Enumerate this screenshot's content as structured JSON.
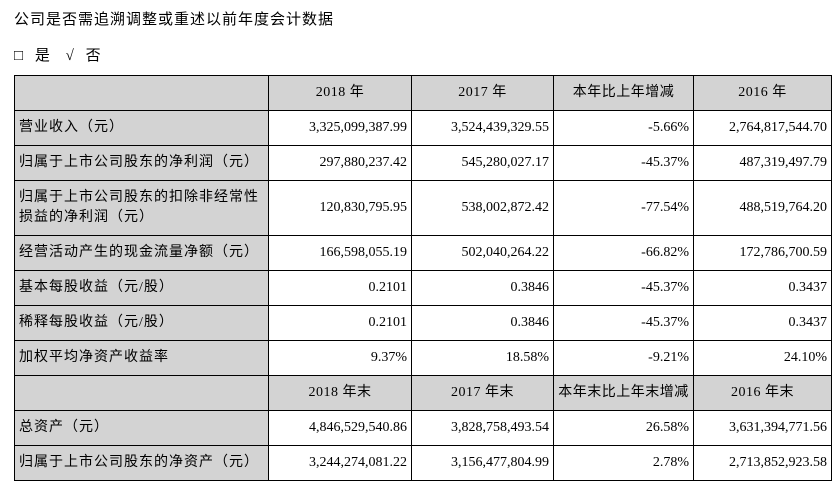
{
  "page": {
    "title": "公司是否需追溯调整或重述以前年度会计数据",
    "choice": {
      "box": "□",
      "yes": "是",
      "check": "√",
      "no": "否"
    }
  },
  "colors": {
    "cell_grey": "#d3d3d3",
    "border": "#000000"
  },
  "table": {
    "sections": [
      {
        "headers": [
          "",
          "2018 年",
          "2017 年",
          "本年比上年增减",
          "2016 年"
        ],
        "rows": [
          {
            "label": "营业收入（元）",
            "values": [
              "3,325,099,387.99",
              "3,524,439,329.55",
              "-5.66%",
              "2,764,817,544.70"
            ]
          },
          {
            "label": "归属于上市公司股东的净利润（元）",
            "values": [
              "297,880,237.42",
              "545,280,027.17",
              "-45.37%",
              "487,319,497.79"
            ]
          },
          {
            "label": "归属于上市公司股东的扣除非经常性损益的净利润（元）",
            "values": [
              "120,830,795.95",
              "538,002,872.42",
              "-77.54%",
              "488,519,764.20"
            ]
          },
          {
            "label": "经营活动产生的现金流量净额（元）",
            "values": [
              "166,598,055.19",
              "502,040,264.22",
              "-66.82%",
              "172,786,700.59"
            ]
          },
          {
            "label": "基本每股收益（元/股）",
            "values": [
              "0.2101",
              "0.3846",
              "-45.37%",
              "0.3437"
            ]
          },
          {
            "label": "稀释每股收益（元/股）",
            "values": [
              "0.2101",
              "0.3846",
              "-45.37%",
              "0.3437"
            ]
          },
          {
            "label": "加权平均净资产收益率",
            "values": [
              "9.37%",
              "18.58%",
              "-9.21%",
              "24.10%"
            ]
          }
        ]
      },
      {
        "headers": [
          "",
          "2018 年末",
          "2017 年末",
          "本年末比上年末增减",
          "2016 年末"
        ],
        "rows": [
          {
            "label": "总资产（元）",
            "values": [
              "4,846,529,540.86",
              "3,828,758,493.54",
              "26.58%",
              "3,631,394,771.56"
            ]
          },
          {
            "label": "归属于上市公司股东的净资产（元）",
            "values": [
              "3,244,274,081.22",
              "3,156,477,804.99",
              "2.78%",
              "2,713,852,923.58"
            ]
          }
        ]
      }
    ]
  }
}
